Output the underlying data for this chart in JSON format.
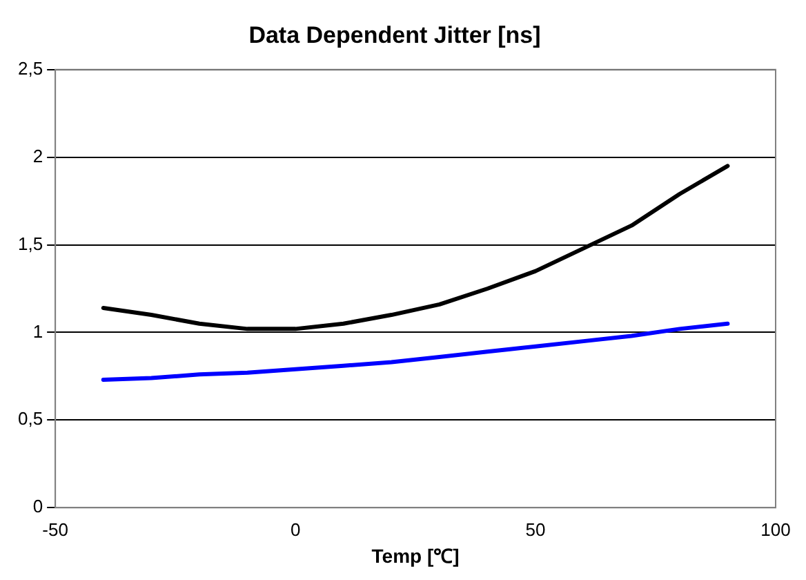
{
  "chart_data": {
    "type": "line",
    "title": "Data Dependent Jitter [ns]",
    "xlabel": "Temp [℃]",
    "x": [
      -40,
      -30,
      -20,
      -10,
      0,
      10,
      20,
      30,
      40,
      50,
      60,
      70,
      80,
      90
    ],
    "series": [
      {
        "color": "#000000",
        "values": [
          1.14,
          1.1,
          1.05,
          1.02,
          1.02,
          1.05,
          1.1,
          1.16,
          1.25,
          1.35,
          1.48,
          1.61,
          1.79,
          1.95
        ]
      },
      {
        "color": "#0000ff",
        "values": [
          0.73,
          0.74,
          0.76,
          0.77,
          0.79,
          0.81,
          0.83,
          0.86,
          0.89,
          0.92,
          0.95,
          0.98,
          1.02,
          1.05
        ]
      }
    ],
    "xlim": [
      -50,
      100
    ],
    "xticks": [
      -50,
      0,
      50,
      100
    ],
    "ylim": [
      0,
      2.5
    ],
    "yticks": [
      0,
      {
        "value": 0.5,
        "label": "0,5"
      },
      1,
      {
        "value": 1.5,
        "label": "1,5"
      },
      2,
      {
        "value": 2.5,
        "label": "2,5"
      }
    ],
    "grid": "y",
    "legend": false,
    "marker": "none",
    "line_style": "solid"
  }
}
